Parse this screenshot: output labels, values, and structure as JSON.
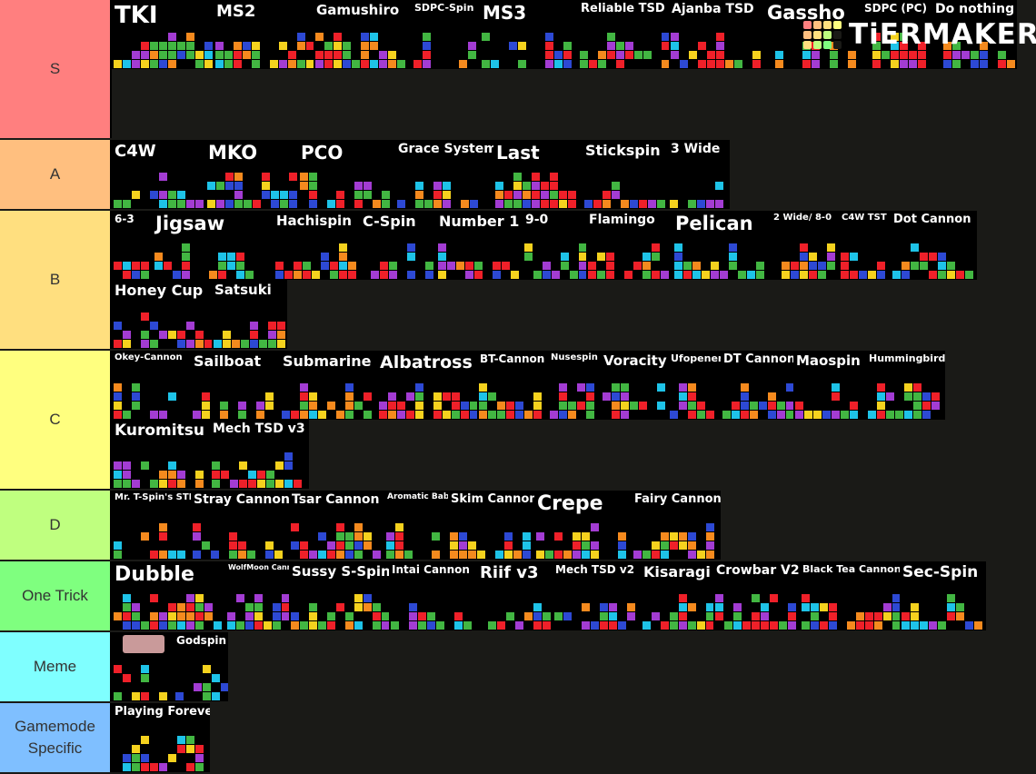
{
  "logo": "TiERMAKER",
  "tiers": [
    {
      "label": "S",
      "color": "#ff7f7f",
      "items": [
        "TKI",
        "MS2",
        "Gamushiro",
        "SDPC-Spin",
        "MS3",
        "Reliable TSD",
        "Ajanba TSD",
        "Gassho",
        "SDPC (PC)",
        "Do nothing"
      ]
    },
    {
      "label": "A",
      "color": "#ffbf7f",
      "items": [
        "C4W",
        "MKO",
        "PCO",
        "Grace System",
        "Last",
        "Stickspin",
        "3 Wide"
      ]
    },
    {
      "label": "B",
      "color": "#ffdf7f",
      "items": [
        "6-3",
        "Jigsaw",
        "Hachispin",
        "C-Spin",
        "Number 1",
        "9-0",
        "Flamingo",
        "Pelican",
        "2 Wide/ 8-0",
        "C4W TST",
        "Dot Cannon",
        "Honey Cup",
        "Satsuki"
      ]
    },
    {
      "label": "C",
      "color": "#ffff7f",
      "items": [
        "Okey-Cannon",
        "Sailboat",
        "Submarine",
        "Albatross",
        "BT-Cannon",
        "Nusespin",
        "Voracity",
        "Ufopener",
        "DT Cannon",
        "Maospin",
        "Hummingbird",
        "Kuromitsu",
        "Mech TSD v3"
      ]
    },
    {
      "label": "D",
      "color": "#bfff7f",
      "items": [
        "Mr. T-Spin's STD",
        "Stray Cannon",
        "Tsar Cannon",
        "Aromatic Baby",
        "Skim Cannon",
        "Crepe",
        "Fairy Cannon"
      ]
    },
    {
      "label": "One Trick",
      "color": "#7fff7f",
      "items": [
        "Dubble",
        "WolfMoon Cannon",
        "Sussy S-Spin",
        "Intai Cannon",
        "Riif v3",
        "Mech TSD v2",
        "Kisaragi",
        "Crowbar V2",
        "Black Tea Cannon",
        "Sec-Spin"
      ]
    },
    {
      "label": "Meme",
      "color": "#7fffff",
      "items": [
        "Godspin"
      ]
    },
    {
      "label": "Gamemode Specific",
      "color": "#7fbfff",
      "items": [
        "Playing Forever"
      ]
    }
  ]
}
